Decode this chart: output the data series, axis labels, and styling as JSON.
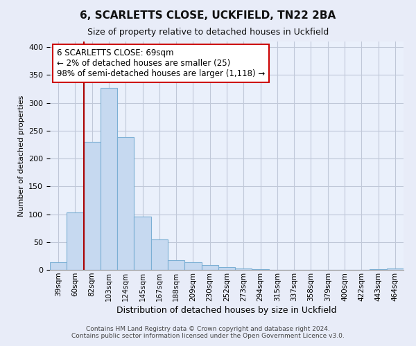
{
  "title": "6, SCARLETTS CLOSE, UCKFIELD, TN22 2BA",
  "subtitle": "Size of property relative to detached houses in Uckfield",
  "xlabel": "Distribution of detached houses by size in Uckfield",
  "ylabel": "Number of detached properties",
  "bin_labels": [
    "39sqm",
    "60sqm",
    "82sqm",
    "103sqm",
    "124sqm",
    "145sqm",
    "167sqm",
    "188sqm",
    "209sqm",
    "230sqm",
    "252sqm",
    "273sqm",
    "294sqm",
    "315sqm",
    "337sqm",
    "358sqm",
    "379sqm",
    "400sqm",
    "422sqm",
    "443sqm",
    "464sqm"
  ],
  "bar_heights": [
    14,
    103,
    230,
    327,
    239,
    96,
    55,
    17,
    14,
    9,
    5,
    2,
    1,
    0,
    0,
    0,
    0,
    0,
    0,
    1,
    2
  ],
  "bar_color": "#c6d9f0",
  "bar_edge_color": "#7bafd4",
  "marker_color": "#aa0000",
  "annotation_text": "6 SCARLETTS CLOSE: 69sqm\n← 2% of detached houses are smaller (25)\n98% of semi-detached houses are larger (1,118) →",
  "annotation_box_color": "#ffffff",
  "annotation_box_edge": "#cc0000",
  "ylim": [
    0,
    410
  ],
  "yticks": [
    0,
    50,
    100,
    150,
    200,
    250,
    300,
    350,
    400
  ],
  "footer_line1": "Contains HM Land Registry data © Crown copyright and database right 2024.",
  "footer_line2": "Contains public sector information licensed under the Open Government Licence v3.0.",
  "bg_color": "#e8ecf8",
  "plot_bg_color": "#eaf0fb",
  "grid_color": "#c0c8d8",
  "title_fontsize": 11,
  "subtitle_fontsize": 9,
  "ylabel_fontsize": 8,
  "xlabel_fontsize": 9,
  "annotation_fontsize": 8.5
}
